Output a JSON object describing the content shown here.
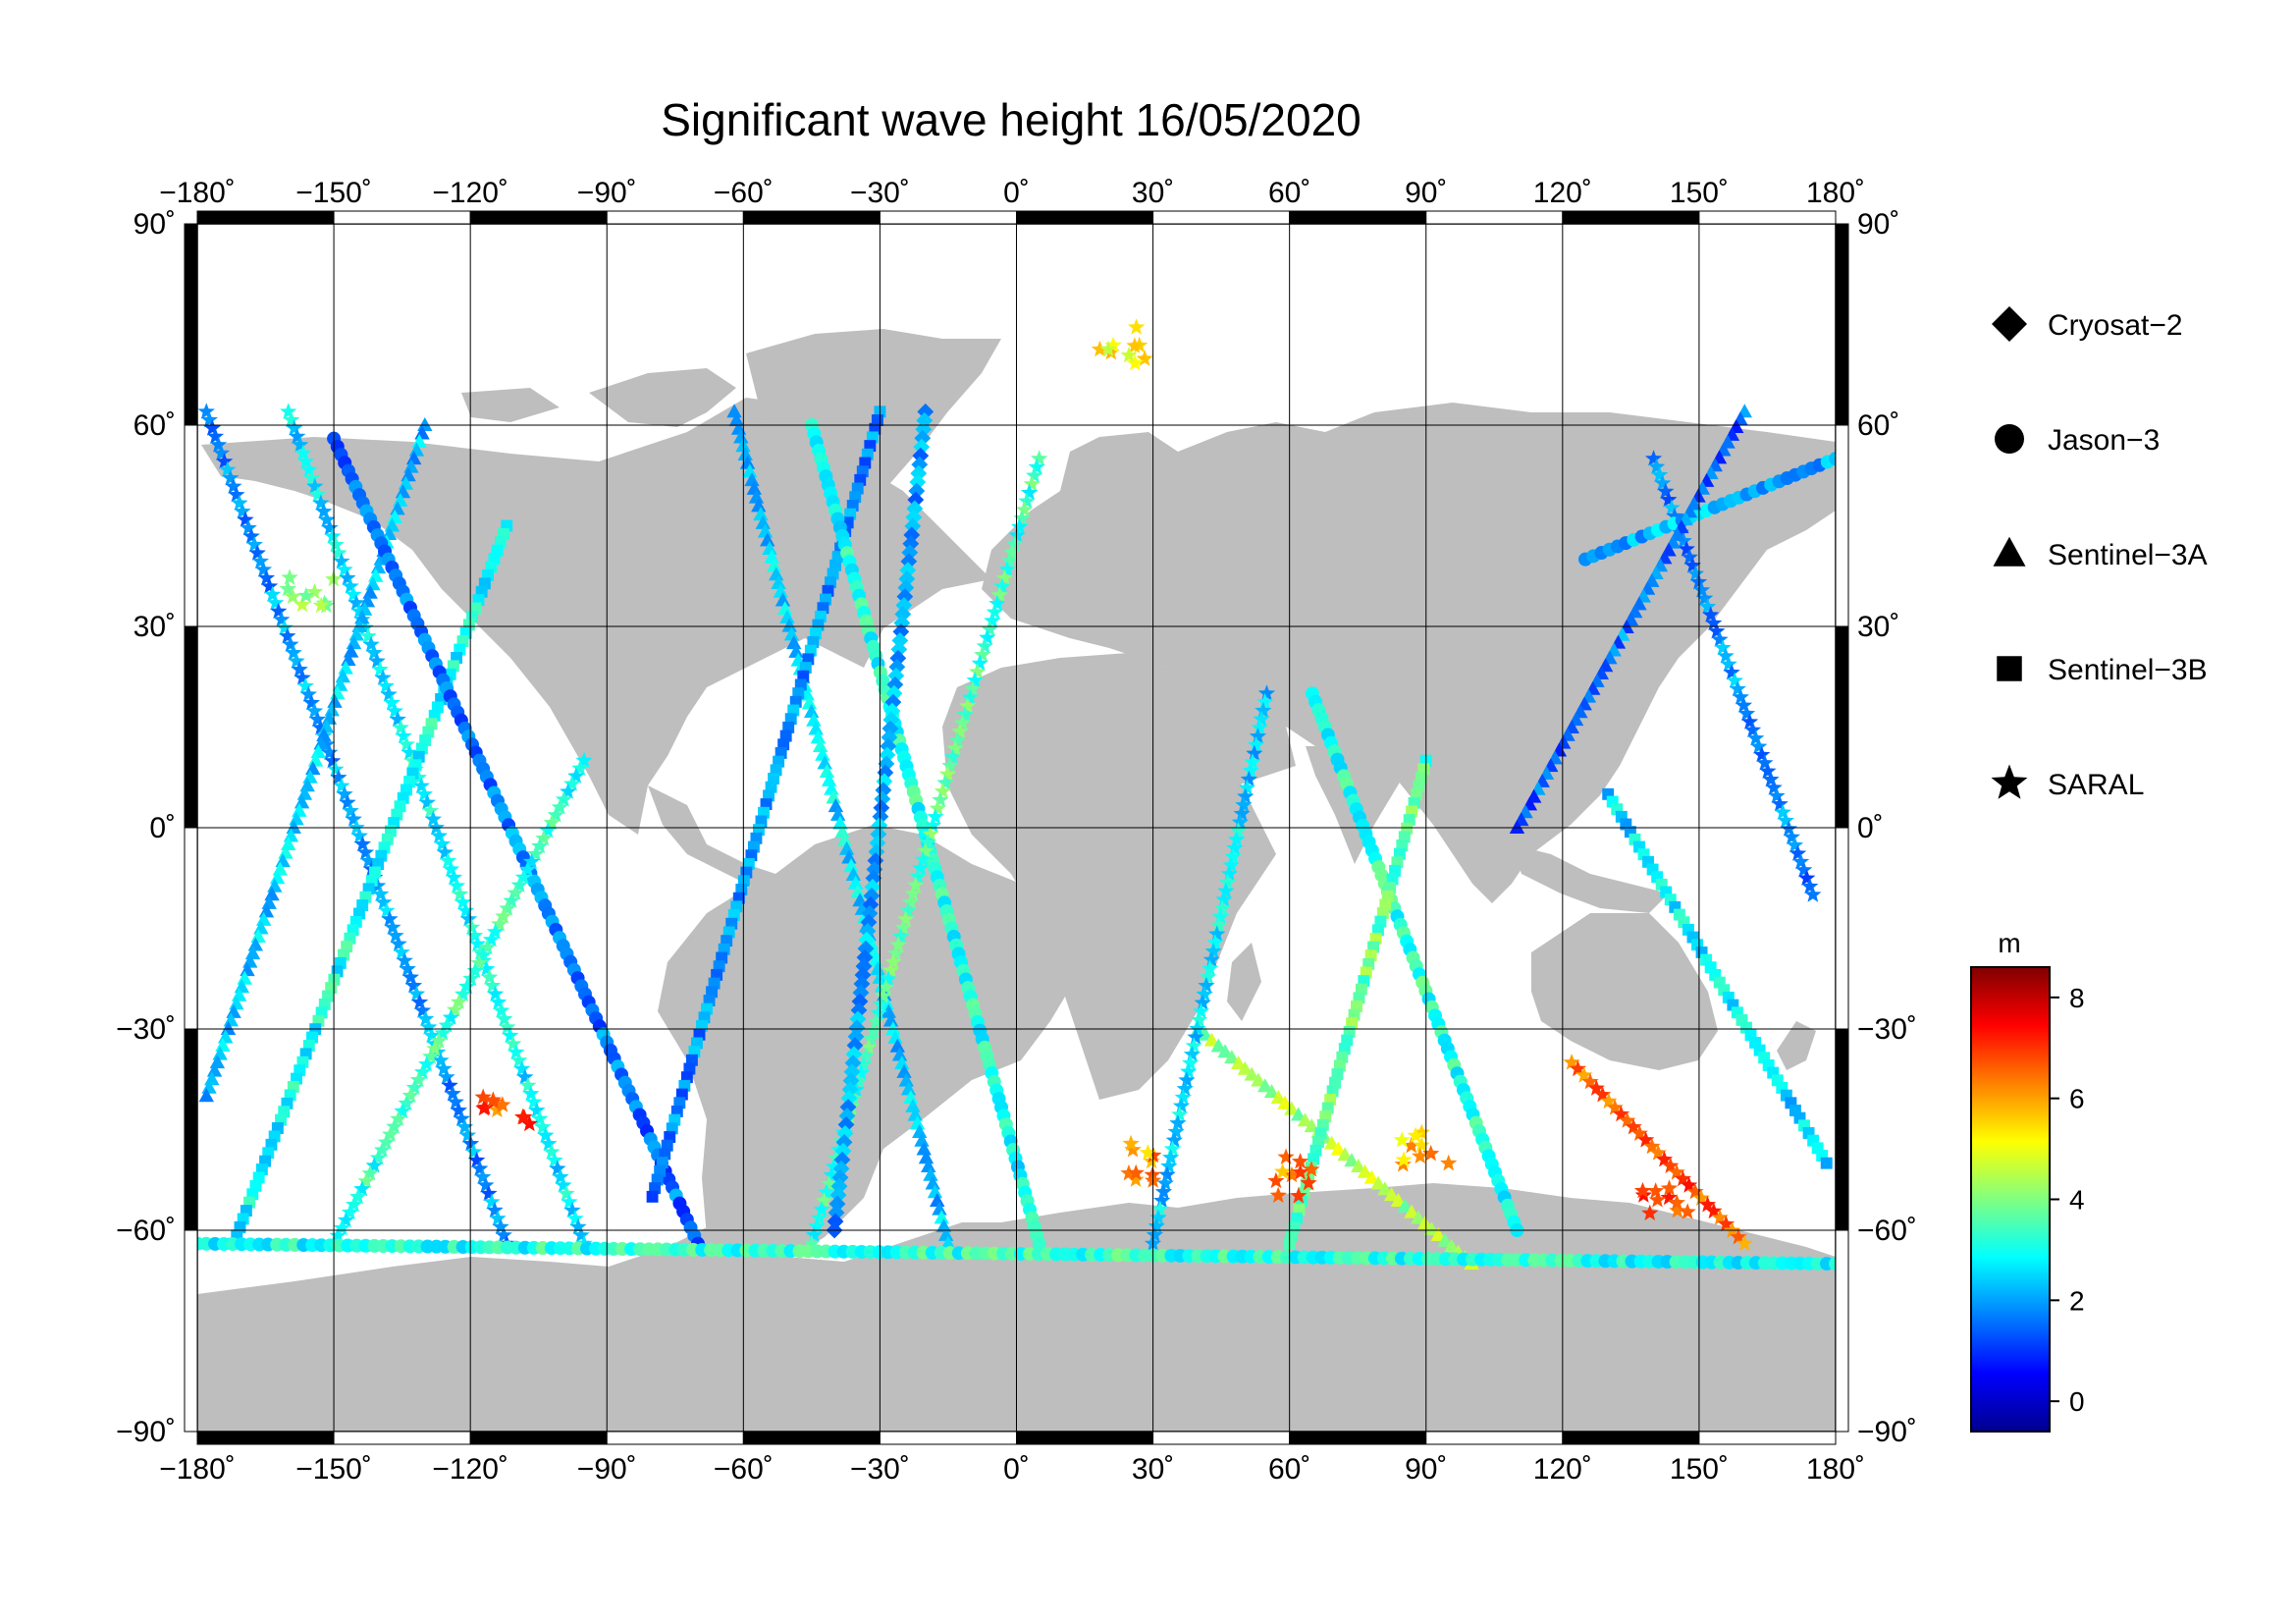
{
  "title": "Significant wave height 16/05/2020",
  "map": {
    "lon_range": [
      -180,
      180
    ],
    "lat_range": [
      -90,
      90
    ],
    "lon_ticks": [
      {
        "value": -180,
        "label": "−180˚"
      },
      {
        "value": -150,
        "label": "−150˚"
      },
      {
        "value": -120,
        "label": "−120˚"
      },
      {
        "value": -90,
        "label": "−90˚"
      },
      {
        "value": -60,
        "label": "−60˚"
      },
      {
        "value": -30,
        "label": "−30˚"
      },
      {
        "value": 0,
        "label": "0˚"
      },
      {
        "value": 30,
        "label": "30˚"
      },
      {
        "value": 60,
        "label": "60˚"
      },
      {
        "value": 90,
        "label": "90˚"
      },
      {
        "value": 120,
        "label": "120˚"
      },
      {
        "value": 150,
        "label": "150˚"
      },
      {
        "value": 180,
        "label": "180˚"
      }
    ],
    "lat_ticks": [
      {
        "value": 90,
        "label": "90˚"
      },
      {
        "value": 60,
        "label": "60˚"
      },
      {
        "value": 30,
        "label": "30˚"
      },
      {
        "value": 0,
        "label": "0˚"
      },
      {
        "value": -30,
        "label": "−30˚"
      },
      {
        "value": -60,
        "label": "−60˚"
      },
      {
        "value": -90,
        "label": "−90˚"
      }
    ],
    "ocean_color": "#ffffff",
    "land_color": "#bebebe",
    "grid": true
  },
  "legend": {
    "placement": "right",
    "items": [
      {
        "label": "Cryosat−2",
        "marker": "diamond"
      },
      {
        "label": "Jason−3",
        "marker": "circle"
      },
      {
        "label": "Sentinel−3A",
        "marker": "triangle"
      },
      {
        "label": "Sentinel−3B",
        "marker": "square"
      },
      {
        "label": "SARAL",
        "marker": "star"
      }
    ]
  },
  "colorbar": {
    "unit": "m",
    "min": -0.6,
    "max": 8.6,
    "ticks": [
      {
        "value": 0,
        "label": "0"
      },
      {
        "value": 2,
        "label": "2"
      },
      {
        "value": 4,
        "label": "4"
      },
      {
        "value": 6,
        "label": "6"
      },
      {
        "value": 8,
        "label": "8"
      }
    ],
    "colormap": [
      "#00008f",
      "#0000ff",
      "#0080ff",
      "#00ffff",
      "#80ff80",
      "#ffff00",
      "#ff8000",
      "#ff0000",
      "#800000"
    ]
  },
  "chart_data": {
    "type": "scatter",
    "xlim": [
      -180,
      180
    ],
    "ylim": [
      -90,
      90
    ],
    "value_unit": "m",
    "tracks": [
      {
        "satellite": "SARAL",
        "from": [
          -178,
          62
        ],
        "to": [
          -112,
          -62
        ],
        "value": 1.8
      },
      {
        "satellite": "SARAL",
        "from": [
          -160,
          62
        ],
        "to": [
          -95,
          -62
        ],
        "value": 2.6
      },
      {
        "satellite": "Sentinel-3A",
        "from": [
          -130,
          60
        ],
        "to": [
          -178,
          -40
        ],
        "value": 2.2
      },
      {
        "satellite": "Sentinel-3B",
        "from": [
          -112,
          45
        ],
        "to": [
          -172,
          -62
        ],
        "value": 2.8
      },
      {
        "satellite": "Jason-3",
        "from": [
          -150,
          58
        ],
        "to": [
          -70,
          -62
        ],
        "value": 1.5
      },
      {
        "satellite": "SARAL",
        "from": [
          -95,
          10
        ],
        "to": [
          -150,
          -62
        ],
        "value": 3.1
      },
      {
        "satellite": "Sentinel-3A",
        "from": [
          -62,
          62
        ],
        "to": [
          -15,
          -62
        ],
        "value": 2.3
      },
      {
        "satellite": "Sentinel-3B",
        "from": [
          -30,
          62
        ],
        "to": [
          -80,
          -55
        ],
        "value": 1.7
      },
      {
        "satellite": "Jason-3",
        "from": [
          -45,
          60
        ],
        "to": [
          5,
          -62
        ],
        "value": 2.9
      },
      {
        "satellite": "SARAL",
        "from": [
          5,
          55
        ],
        "to": [
          -45,
          -62
        ],
        "value": 3.3
      },
      {
        "satellite": "Cryosat-2",
        "from": [
          -20,
          62
        ],
        "to": [
          -40,
          -60
        ],
        "value": 1.9
      },
      {
        "satellite": "Sentinel-3A",
        "from": [
          40,
          -30
        ],
        "to": [
          100,
          -65
        ],
        "value": 4.2
      },
      {
        "satellite": "SARAL",
        "from": [
          55,
          20
        ],
        "to": [
          30,
          -62
        ],
        "value": 2.4
      },
      {
        "satellite": "Jason-3",
        "from": [
          65,
          20
        ],
        "to": [
          110,
          -60
        ],
        "value": 3.0
      },
      {
        "satellite": "Sentinel-3B",
        "from": [
          90,
          10
        ],
        "to": [
          60,
          -62
        ],
        "value": 3.6
      },
      {
        "satellite": "SARAL",
        "from": [
          140,
          55
        ],
        "to": [
          175,
          -10
        ],
        "value": 1.6
      },
      {
        "satellite": "Jason-3",
        "from": [
          125,
          40
        ],
        "to": [
          180,
          55
        ],
        "value": 2.0
      },
      {
        "satellite": "Sentinel-3A",
        "from": [
          160,
          62
        ],
        "to": [
          110,
          0
        ],
        "value": 1.4
      },
      {
        "satellite": "Sentinel-3B",
        "from": [
          130,
          5
        ],
        "to": [
          178,
          -50
        ],
        "value": 2.5
      },
      {
        "satellite": "SARAL",
        "from": [
          122,
          -35
        ],
        "to": [
          160,
          -62
        ],
        "value": 6.5
      },
      {
        "satellite": "Jason-3",
        "from": [
          -180,
          -62
        ],
        "to": [
          180,
          -65
        ],
        "value": 3.0
      }
    ],
    "hotspots": [
      {
        "lon": -112,
        "lat": -42,
        "value": 7.5
      },
      {
        "lon": -155,
        "lat": 35,
        "value": 5.0
      },
      {
        "lon": 30,
        "lat": -50,
        "value": 6.8
      },
      {
        "lon": 60,
        "lat": -52,
        "value": 7.0
      },
      {
        "lon": 90,
        "lat": -48,
        "value": 6.5
      },
      {
        "lon": 143,
        "lat": -56,
        "value": 7.8
      },
      {
        "lon": 23,
        "lat": 72,
        "value": 6.0
      }
    ]
  }
}
